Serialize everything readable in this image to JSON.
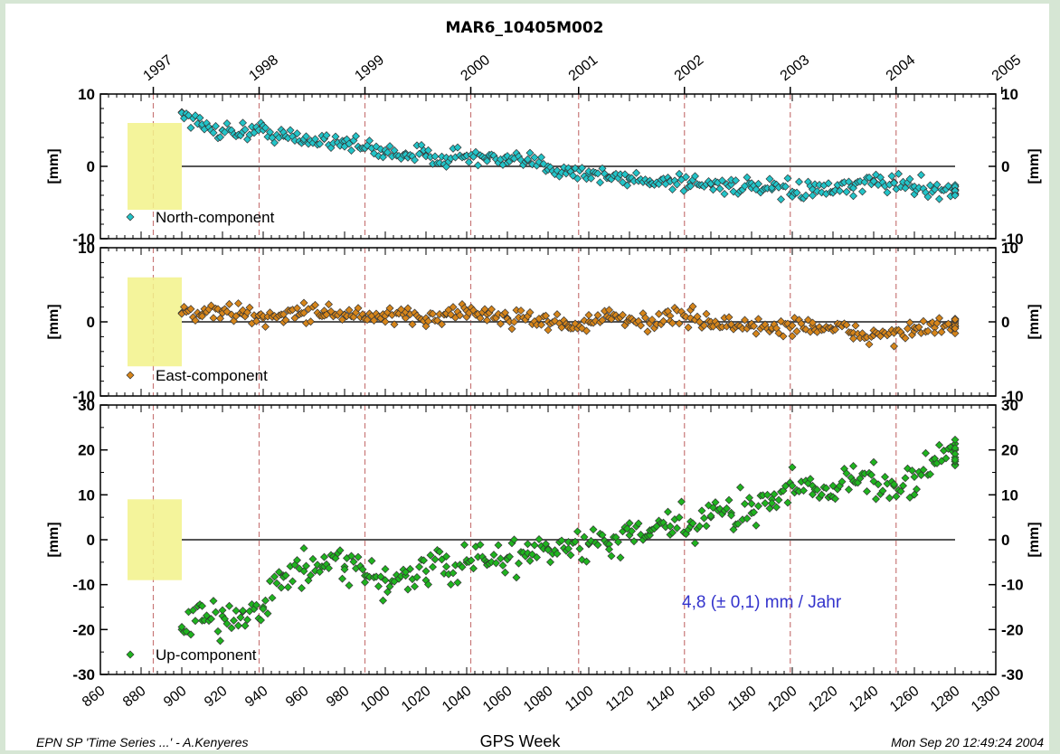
{
  "chart_data": {
    "type": "scatter",
    "title": "MAR6_10405M002",
    "xlabel": "GPS Week",
    "xlim": [
      860,
      1300
    ],
    "x_ticks": [
      "860",
      "880",
      "900",
      "920",
      "940",
      "960",
      "980",
      "1000",
      "1020",
      "1040",
      "1060",
      "1080",
      "1100",
      "1120",
      "1140",
      "1160",
      "1180",
      "1200",
      "1220",
      "1240",
      "1260",
      "1280",
      "1300"
    ],
    "top_axis_years": [
      "1997",
      "1998",
      "1999",
      "2000",
      "2001",
      "2002",
      "2003",
      "2004",
      "2005"
    ],
    "panels": [
      {
        "name": "North-component",
        "ylabel": "[mm]",
        "ylim": [
          -10,
          10
        ],
        "y_ticks": [
          "10",
          "0",
          "-10"
        ],
        "color": "#22c4c8",
        "series": [
          {
            "x": 900,
            "y": 7.5
          },
          {
            "x": 910,
            "y": 5.5
          },
          {
            "x": 920,
            "y": 5
          },
          {
            "x": 930,
            "y": 4.8
          },
          {
            "x": 940,
            "y": 5
          },
          {
            "x": 950,
            "y": 4.2
          },
          {
            "x": 960,
            "y": 3.5
          },
          {
            "x": 970,
            "y": 3.8
          },
          {
            "x": 980,
            "y": 3.5
          },
          {
            "x": 990,
            "y": 2.5
          },
          {
            "x": 1000,
            "y": 2
          },
          {
            "x": 1010,
            "y": 1.8
          },
          {
            "x": 1020,
            "y": 1.5
          },
          {
            "x": 1030,
            "y": 1.2
          },
          {
            "x": 1040,
            "y": 1.5
          },
          {
            "x": 1050,
            "y": 1
          },
          {
            "x": 1060,
            "y": 0.5
          },
          {
            "x": 1070,
            "y": 0.8
          },
          {
            "x": 1080,
            "y": 0
          },
          {
            "x": 1090,
            "y": -0.5
          },
          {
            "x": 1100,
            "y": -1
          },
          {
            "x": 1110,
            "y": -1.5
          },
          {
            "x": 1120,
            "y": -1.8
          },
          {
            "x": 1130,
            "y": -2
          },
          {
            "x": 1140,
            "y": -2
          },
          {
            "x": 1150,
            "y": -2.2
          },
          {
            "x": 1160,
            "y": -2.5
          },
          {
            "x": 1170,
            "y": -2.5
          },
          {
            "x": 1180,
            "y": -3
          },
          {
            "x": 1190,
            "y": -3.2
          },
          {
            "x": 1200,
            "y": -3.5
          },
          {
            "x": 1210,
            "y": -3.2
          },
          {
            "x": 1220,
            "y": -3.5
          },
          {
            "x": 1230,
            "y": -3
          },
          {
            "x": 1240,
            "y": -2
          },
          {
            "x": 1250,
            "y": -2.2
          },
          {
            "x": 1260,
            "y": -2.8
          },
          {
            "x": 1270,
            "y": -3
          },
          {
            "x": 1280,
            "y": -3.2
          }
        ]
      },
      {
        "name": "East-component",
        "ylabel": "[mm]",
        "ylim": [
          -10,
          10
        ],
        "y_ticks": [
          "10",
          "0",
          "-10"
        ],
        "color": "#d6851a",
        "series": [
          {
            "x": 900,
            "y": 1.2
          },
          {
            "x": 910,
            "y": 1
          },
          {
            "x": 920,
            "y": 1.5
          },
          {
            "x": 930,
            "y": 1
          },
          {
            "x": 940,
            "y": 0.5
          },
          {
            "x": 950,
            "y": 1
          },
          {
            "x": 960,
            "y": 1.2
          },
          {
            "x": 970,
            "y": 1.5
          },
          {
            "x": 980,
            "y": 1
          },
          {
            "x": 990,
            "y": 0.5
          },
          {
            "x": 1000,
            "y": 0.8
          },
          {
            "x": 1010,
            "y": 0.5
          },
          {
            "x": 1020,
            "y": 0.5
          },
          {
            "x": 1030,
            "y": 1
          },
          {
            "x": 1040,
            "y": 1.5
          },
          {
            "x": 1050,
            "y": 1
          },
          {
            "x": 1060,
            "y": 0.5
          },
          {
            "x": 1070,
            "y": 0.8
          },
          {
            "x": 1080,
            "y": 0
          },
          {
            "x": 1090,
            "y": -0.5
          },
          {
            "x": 1100,
            "y": 0
          },
          {
            "x": 1110,
            "y": 0.5
          },
          {
            "x": 1120,
            "y": 0.2
          },
          {
            "x": 1130,
            "y": 0
          },
          {
            "x": 1140,
            "y": 0.8
          },
          {
            "x": 1150,
            "y": 0.5
          },
          {
            "x": 1160,
            "y": 0
          },
          {
            "x": 1170,
            "y": -0.5
          },
          {
            "x": 1180,
            "y": -0.5
          },
          {
            "x": 1190,
            "y": -1
          },
          {
            "x": 1200,
            "y": -0.5
          },
          {
            "x": 1210,
            "y": -0.5
          },
          {
            "x": 1220,
            "y": -1
          },
          {
            "x": 1230,
            "y": -1.5
          },
          {
            "x": 1240,
            "y": -1.8
          },
          {
            "x": 1250,
            "y": -1.5
          },
          {
            "x": 1260,
            "y": -1.2
          },
          {
            "x": 1270,
            "y": -0.8
          },
          {
            "x": 1280,
            "y": -0.5
          }
        ]
      },
      {
        "name": "Up-component",
        "ylabel": "[mm]",
        "ylim": [
          -30,
          30
        ],
        "y_ticks": [
          "30",
          "20",
          "10",
          "0",
          "-10",
          "-20",
          "-30"
        ],
        "color": "#1fb41f",
        "series": [
          {
            "x": 900,
            "y": -20
          },
          {
            "x": 910,
            "y": -18
          },
          {
            "x": 920,
            "y": -17
          },
          {
            "x": 930,
            "y": -16
          },
          {
            "x": 940,
            "y": -15
          },
          {
            "x": 950,
            "y": -8
          },
          {
            "x": 960,
            "y": -7
          },
          {
            "x": 970,
            "y": -6
          },
          {
            "x": 980,
            "y": -6
          },
          {
            "x": 990,
            "y": -8
          },
          {
            "x": 1000,
            "y": -9
          },
          {
            "x": 1010,
            "y": -8
          },
          {
            "x": 1020,
            "y": -7
          },
          {
            "x": 1030,
            "y": -6
          },
          {
            "x": 1040,
            "y": -5
          },
          {
            "x": 1050,
            "y": -5
          },
          {
            "x": 1060,
            "y": -4
          },
          {
            "x": 1070,
            "y": -3
          },
          {
            "x": 1080,
            "y": -2
          },
          {
            "x": 1090,
            "y": -2
          },
          {
            "x": 1100,
            "y": -1
          },
          {
            "x": 1110,
            "y": -1
          },
          {
            "x": 1120,
            "y": 1
          },
          {
            "x": 1130,
            "y": 1
          },
          {
            "x": 1140,
            "y": 3
          },
          {
            "x": 1150,
            "y": 3
          },
          {
            "x": 1160,
            "y": 5
          },
          {
            "x": 1170,
            "y": 6
          },
          {
            "x": 1180,
            "y": 8
          },
          {
            "x": 1190,
            "y": 9
          },
          {
            "x": 1200,
            "y": 12
          },
          {
            "x": 1210,
            "y": 12
          },
          {
            "x": 1220,
            "y": 12
          },
          {
            "x": 1230,
            "y": 13
          },
          {
            "x": 1240,
            "y": 13
          },
          {
            "x": 1250,
            "y": 12
          },
          {
            "x": 1260,
            "y": 14
          },
          {
            "x": 1270,
            "y": 17
          },
          {
            "x": 1280,
            "y": 20
          }
        ]
      }
    ],
    "annotation": "4,8 (± 0,1) mm / Jahr",
    "grid": "vertical dashed lines at year boundaries",
    "year_weeks": [
      886,
      938,
      990,
      1042,
      1095,
      1147,
      1199,
      1251,
      1303
    ]
  },
  "footer": {
    "left": "EPN SP  'Time Series ...' - A.Kenyeres",
    "right": "Mon Sep 20 12:49:24 2004"
  },
  "colors": {
    "background": "#d6e6d4",
    "year_line": "#c87878",
    "highlight": "#f2f28a",
    "annotation": "#3333cc"
  }
}
